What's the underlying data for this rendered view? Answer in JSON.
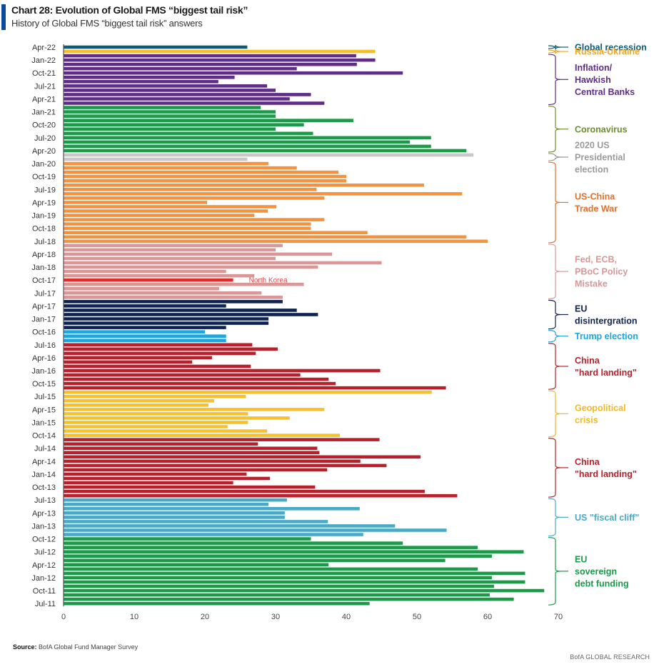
{
  "header": {
    "title": "Chart 28: Evolution of Global FMS “biggest tail risk”",
    "subtitle": "History of Global FMS “biggest tail risk” answers"
  },
  "footer": {
    "source_label": "Source:",
    "source_text": "BofA Global Fund Manager Survey",
    "brand": "BofA GLOBAL RESEARCH"
  },
  "chart_data": {
    "type": "bar",
    "orientation": "horizontal",
    "title": "Chart 28: Evolution of Global FMS “biggest tail risk”",
    "subtitle": "History of Global FMS “biggest tail risk” answers",
    "xlabel": "",
    "ylabel": "",
    "xlim": [
      0,
      70
    ],
    "xticks": [
      0,
      10,
      20,
      30,
      40,
      50,
      60,
      70
    ],
    "grid": false,
    "legend": "right-side bracket annotations",
    "order": "newest-first (top) to oldest (bottom)",
    "ytick_labels": [
      "Apr-22",
      "Jan-22",
      "Oct-21",
      "Jul-21",
      "Apr-21",
      "Jan-21",
      "Oct-20",
      "Jul-20",
      "Apr-20",
      "Jan-20",
      "Oct-19",
      "Jul-19",
      "Apr-19",
      "Jan-19",
      "Oct-18",
      "Jul-18",
      "Apr-18",
      "Jan-18",
      "Oct-17",
      "Jul-17",
      "Apr-17",
      "Jan-17",
      "Oct-16",
      "Jul-16",
      "Apr-16",
      "Jan-16",
      "Oct-15",
      "Jul-15",
      "Apr-15",
      "Jan-15",
      "Oct-14",
      "Jul-14",
      "Apr-14",
      "Jan-14",
      "Oct-13",
      "Jul-13",
      "Apr-13",
      "Jan-13",
      "Oct-12",
      "Jul-12",
      "Apr-12",
      "Jan-12",
      "Oct-11",
      "Jul-11"
    ],
    "first_month": "Apr-22",
    "groups": [
      {
        "name": "Global recession",
        "label_lines": [
          "Global recession"
        ],
        "color": "#0e5b73",
        "label_color": "#0e5b73",
        "values": [
          26.0
        ]
      },
      {
        "name": "Russia-Ukraine",
        "label_lines": [
          "Russia-Ukraine"
        ],
        "color": "#f6be28",
        "label_color": "#f2a81d",
        "values": [
          44.1
        ]
      },
      {
        "name": "Inflation/Hawkish Central Banks",
        "label_lines": [
          "Inflation/",
          "Hawkish",
          "Central Banks"
        ],
        "color": "#5e2d86",
        "label_color": "#5e2d86",
        "values": [
          41.4,
          44.1,
          41.5,
          33.0,
          48.0,
          24.2,
          21.9,
          28.8,
          30.0,
          35.0,
          32.0,
          36.9
        ]
      },
      {
        "name": "Coronavirus",
        "label_lines": [
          "Coronavirus"
        ],
        "color": "#1c9a4a",
        "label_color": "#6a8f2f",
        "values": [
          27.9,
          30.0,
          30.0,
          41.0,
          34.0,
          30.0,
          35.3,
          52.0,
          49.0,
          52.0,
          57.0
        ]
      },
      {
        "name": "2020 US Presidential election",
        "label_lines": [
          "2020 US",
          "Presidential",
          "election"
        ],
        "color": "#c8c8c8",
        "label_color": "#9a9a9a",
        "values": [
          58.0,
          26.0
        ]
      },
      {
        "name": "US-China Trade War",
        "label_lines": [
          "US-China",
          "Trade War"
        ],
        "color": "#f5923e",
        "label_color": "#e2702a",
        "values": [
          29.0,
          33.0,
          38.9,
          40.0,
          40.0,
          51.0,
          35.8,
          56.4,
          36.9,
          20.3,
          30.1,
          28.9,
          27.0,
          36.9,
          35.0,
          35.0,
          43.0,
          57.0,
          60.0
        ]
      },
      {
        "name": "Fed, ECB, PBoC Policy Mistake",
        "label_lines": [
          "Fed, ECB,",
          "PBoC Policy",
          "Mistake"
        ],
        "color": "#d99797",
        "label_color": "#d99797",
        "values": [
          31.0,
          30.0,
          38.0,
          30.0,
          45.0,
          36.0,
          23.0,
          27.0,
          24.0,
          34.0,
          22.0,
          28.0,
          31.0
        ],
        "highlight": {
          "index": 8,
          "month": "Oct-17",
          "color": "#e02b2b",
          "label": "North Korea",
          "label_color": "#e04a4a"
        }
      },
      {
        "name": "EU disintergration",
        "label_lines": [
          "EU",
          "disintergration"
        ],
        "color": "#0f2350",
        "label_color": "#0f2350",
        "values": [
          31.0,
          23.0,
          33.0,
          36.0,
          29.0,
          29.0,
          23.0
        ]
      },
      {
        "name": "Trump election",
        "label_lines": [
          "Trump election"
        ],
        "color": "#1ea6dc",
        "label_color": "#1ea6dc",
        "values": [
          20.0,
          23.0,
          23.0
        ]
      },
      {
        "name": "China \"hard landing\"",
        "label_lines": [
          "China",
          "\"hard landing\""
        ],
        "color": "#b8212c",
        "label_color": "#b8212c",
        "values": [
          26.7,
          30.3,
          27.2,
          21.0,
          18.2,
          26.5,
          44.8,
          33.5,
          37.5,
          38.5,
          54.1
        ]
      },
      {
        "name": "Geopolitical crisis",
        "label_lines": [
          "Geopolitical",
          "crisis"
        ],
        "color": "#f8c12c",
        "label_color": "#f4b922",
        "values": [
          52.1,
          25.8,
          21.3,
          20.5,
          36.9,
          26.1,
          32.0,
          26.1,
          23.2,
          28.8,
          39.1
        ]
      },
      {
        "name": "China \"hard landing\"",
        "label_lines": [
          "China",
          "\"hard landing\""
        ],
        "color": "#b8212c",
        "label_color": "#b8212c",
        "values": [
          44.7,
          27.5,
          35.9,
          36.2,
          50.5,
          42.0,
          45.7,
          37.3,
          25.9,
          29.2,
          24.0,
          35.6,
          51.1,
          55.7
        ]
      },
      {
        "name": "US \"fiscal cliff\"",
        "label_lines": [
          "US \"fiscal cliff\""
        ],
        "color": "#4aa9c6",
        "label_color": "#4aa9c6",
        "values": [
          31.6,
          29.0,
          41.9,
          31.3,
          31.3,
          37.4,
          46.9,
          54.2,
          42.4
        ]
      },
      {
        "name": "EU sovereign debt funding",
        "label_lines": [
          "EU",
          "sovereign",
          "debt funding"
        ],
        "color": "#1c9a4a",
        "label_color": "#1c9a4a",
        "values": [
          35.0,
          48.0,
          58.6,
          65.1,
          60.6,
          54.0,
          37.5,
          58.6,
          65.3,
          60.6,
          65.3,
          60.9,
          68.0,
          60.3,
          63.7,
          43.3
        ]
      }
    ]
  }
}
